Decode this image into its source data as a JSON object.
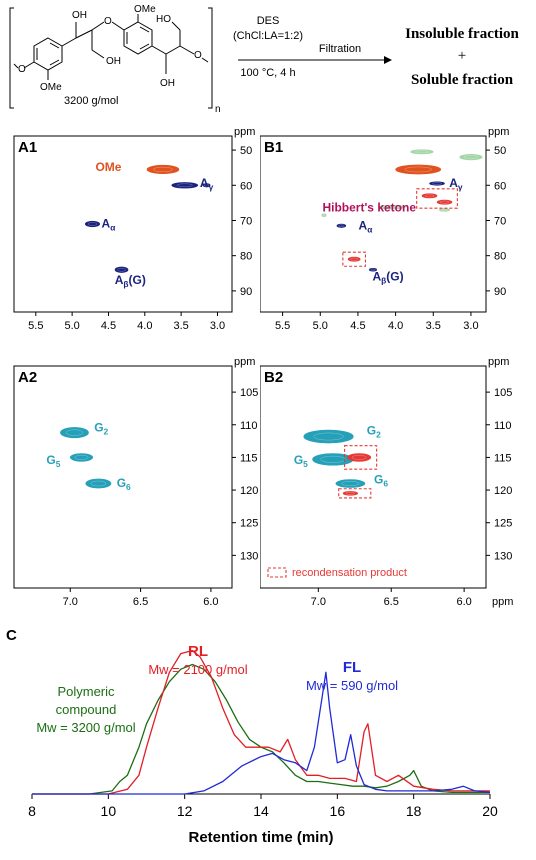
{
  "scheme": {
    "polymer_mw": "3200 g/mol",
    "polymer_n": "n",
    "oh_labels": [
      "OH",
      "OH",
      "HO",
      "OH"
    ],
    "ome_labels": [
      "OMe",
      "OMe"
    ],
    "o_labels": [
      "O",
      "O",
      "O"
    ],
    "arrow_top_lines": [
      "DES",
      "(ChCl:LA=1:2)"
    ],
    "arrow_bottom": "100 °C, 4 h",
    "filtration": "Filtration",
    "insoluble": "Insoluble fraction",
    "plus": "+",
    "soluble": "Soluble fraction"
  },
  "nmr": {
    "ppm_label": "ppm",
    "A1": {
      "title": "A1",
      "x_ticks": [
        "5.5",
        "5.0",
        "4.5",
        "4.0",
        "3.5",
        "3.0"
      ],
      "y_ticks": [
        "50",
        "60",
        "70",
        "80",
        "90"
      ],
      "xlim": [
        5.8,
        2.8
      ],
      "ylim": [
        46,
        96
      ],
      "labels": [
        {
          "text": "OMe",
          "x": 4.5,
          "y": 56.0,
          "color": "#e0531f"
        },
        {
          "text": "Aγ",
          "x": 3.15,
          "y": 60.5,
          "color": "#1a237e"
        },
        {
          "text": "Aα",
          "x": 4.5,
          "y": 72.0,
          "color": "#1a237e"
        },
        {
          "text": "Aβ(G)",
          "x": 4.2,
          "y": 88.0,
          "color": "#1a237e"
        }
      ],
      "peaks": [
        {
          "x": 3.75,
          "y": 55.5,
          "rx": 0.22,
          "ry": 1.2,
          "color": "#e0531f"
        },
        {
          "x": 3.45,
          "y": 60.0,
          "rx": 0.18,
          "ry": 0.8,
          "color": "#1a237e"
        },
        {
          "x": 3.15,
          "y": 60.0,
          "rx": 0.05,
          "ry": 0.5,
          "color": "#1a237e"
        },
        {
          "x": 4.72,
          "y": 71.0,
          "rx": 0.1,
          "ry": 0.8,
          "color": "#1a237e"
        },
        {
          "x": 4.32,
          "y": 84.0,
          "rx": 0.09,
          "ry": 0.8,
          "color": "#1a237e"
        }
      ]
    },
    "B1": {
      "title": "B1",
      "x_ticks": [
        "5.5",
        "5.0",
        "4.5",
        "4.0",
        "3.5",
        "3.0"
      ],
      "y_ticks": [
        "50",
        "60",
        "70",
        "80",
        "90"
      ],
      "xlim": [
        5.8,
        2.8
      ],
      "ylim": [
        46,
        96
      ],
      "labels": [
        {
          "text": "Aγ",
          "x": 3.2,
          "y": 60.5,
          "color": "#1a237e"
        },
        {
          "text": "Hibbert's ketone",
          "x": 4.35,
          "y": 67.5,
          "color": "#b0125a"
        },
        {
          "text": "Aα",
          "x": 4.4,
          "y": 72.5,
          "color": "#1a237e"
        },
        {
          "text": "Aβ(G)",
          "x": 4.1,
          "y": 87.0,
          "color": "#1a237e"
        }
      ],
      "peaks": [
        {
          "x": 3.65,
          "y": 50.5,
          "rx": 0.15,
          "ry": 0.6,
          "color": "#a5d6a7"
        },
        {
          "x": 3.0,
          "y": 52.0,
          "rx": 0.15,
          "ry": 0.8,
          "color": "#a5d6a7"
        },
        {
          "x": 3.7,
          "y": 55.5,
          "rx": 0.3,
          "ry": 1.3,
          "color": "#e0531f"
        },
        {
          "x": 3.45,
          "y": 59.5,
          "rx": 0.1,
          "ry": 0.5,
          "color": "#1a237e"
        },
        {
          "x": 3.55,
          "y": 63.0,
          "rx": 0.1,
          "ry": 0.6,
          "color": "#e53935"
        },
        {
          "x": 3.35,
          "y": 64.8,
          "rx": 0.1,
          "ry": 0.6,
          "color": "#e53935"
        },
        {
          "x": 4.05,
          "y": 66.2,
          "rx": 0.18,
          "ry": 0.5,
          "color": "#a5d6a7"
        },
        {
          "x": 3.35,
          "y": 67.0,
          "rx": 0.07,
          "ry": 0.4,
          "color": "#a5d6a7"
        },
        {
          "x": 4.95,
          "y": 68.5,
          "rx": 0.03,
          "ry": 0.4,
          "color": "#a5d6a7"
        },
        {
          "x": 4.72,
          "y": 71.5,
          "rx": 0.06,
          "ry": 0.5,
          "color": "#1a237e"
        },
        {
          "x": 4.55,
          "y": 81.0,
          "rx": 0.08,
          "ry": 0.6,
          "color": "#e53935"
        },
        {
          "x": 4.3,
          "y": 84.0,
          "rx": 0.05,
          "ry": 0.4,
          "color": "#1a237e"
        }
      ],
      "boxes": [
        {
          "x1": 3.72,
          "x2": 3.18,
          "y1": 61.0,
          "y2": 66.5
        },
        {
          "x1": 4.7,
          "x2": 4.4,
          "y1": 79.0,
          "y2": 83.0
        }
      ]
    },
    "A2": {
      "title": "A2",
      "x_ticks": [
        "7.0",
        "6.5",
        "6.0"
      ],
      "y_ticks": [
        "105",
        "110",
        "115",
        "120",
        "125",
        "130"
      ],
      "xlim": [
        7.4,
        5.85
      ],
      "ylim": [
        101,
        135
      ],
      "labels": [
        {
          "text": "G2",
          "x": 6.78,
          "y": 111.0,
          "color": "#26a0b8"
        },
        {
          "text": "G5",
          "x": 7.12,
          "y": 116.0,
          "color": "#26a0b8"
        },
        {
          "text": "G6",
          "x": 6.62,
          "y": 119.5,
          "color": "#26a0b8"
        }
      ],
      "peaks": [
        {
          "x": 6.97,
          "y": 111.2,
          "rx": 0.1,
          "ry": 0.8,
          "color": "#26a0b8"
        },
        {
          "x": 6.92,
          "y": 115.0,
          "rx": 0.08,
          "ry": 0.6,
          "color": "#26a0b8"
        },
        {
          "x": 6.8,
          "y": 119.0,
          "rx": 0.09,
          "ry": 0.7,
          "color": "#26a0b8"
        }
      ]
    },
    "B2": {
      "title": "B2",
      "x_ticks": [
        "7.0",
        "6.5",
        "6.0"
      ],
      "y_ticks": [
        "105",
        "110",
        "115",
        "120",
        "125",
        "130"
      ],
      "xlim": [
        7.4,
        5.85
      ],
      "ylim": [
        101,
        135
      ],
      "labels": [
        {
          "text": "G2",
          "x": 6.62,
          "y": 111.5,
          "color": "#26a0b8"
        },
        {
          "text": "G5",
          "x": 7.12,
          "y": 116.0,
          "color": "#26a0b8"
        },
        {
          "text": "G6",
          "x": 6.57,
          "y": 119.0,
          "color": "#26a0b8"
        }
      ],
      "peaks": [
        {
          "x": 6.93,
          "y": 111.8,
          "rx": 0.17,
          "ry": 1.0,
          "color": "#26a0b8"
        },
        {
          "x": 6.9,
          "y": 115.3,
          "rx": 0.14,
          "ry": 0.9,
          "color": "#26a0b8"
        },
        {
          "x": 6.72,
          "y": 115.0,
          "rx": 0.08,
          "ry": 0.6,
          "color": "#e53935"
        },
        {
          "x": 6.78,
          "y": 119.0,
          "rx": 0.1,
          "ry": 0.6,
          "color": "#26a0b8"
        },
        {
          "x": 6.78,
          "y": 120.5,
          "rx": 0.05,
          "ry": 0.3,
          "color": "#e53935"
        }
      ],
      "boxes": [
        {
          "x1": 6.82,
          "x2": 6.6,
          "y1": 113.2,
          "y2": 116.8
        },
        {
          "x1": 6.86,
          "x2": 6.64,
          "y1": 119.8,
          "y2": 121.2
        }
      ],
      "legend_text": "recondensation product"
    }
  },
  "chart_data": {
    "type": "line",
    "panel": "C",
    "xlabel": "Retention time (min)",
    "xlim": [
      8,
      20
    ],
    "x_ticks": [
      "8",
      "10",
      "12",
      "14",
      "16",
      "18",
      "20"
    ],
    "annotations": {
      "rl_name": "RL",
      "rl_mw": "Mw = 2100 g/mol",
      "fl_name": "FL",
      "fl_mw": "Mw = 590 g/mol",
      "pc_line1": "Polymeric",
      "pc_line2": "compound",
      "pc_mw": "Mw = 3200 g/mol"
    },
    "series": [
      {
        "name": "Polymeric compound",
        "color": "#1b6f12",
        "x": [
          8,
          9.5,
          10.1,
          10.3,
          10.5,
          10.8,
          11.0,
          11.3,
          11.6,
          11.9,
          12.2,
          12.5,
          12.8,
          13.1,
          13.4,
          13.7,
          14.0,
          14.3,
          14.6,
          14.9,
          15.2,
          15.5,
          15.8,
          16.1,
          16.4,
          16.7,
          17.0,
          17.3,
          17.6,
          17.9,
          18.0,
          18.2,
          18.5,
          19,
          20
        ],
        "y": [
          0,
          0,
          0.02,
          0.08,
          0.12,
          0.3,
          0.45,
          0.6,
          0.72,
          0.8,
          0.83,
          0.8,
          0.72,
          0.6,
          0.46,
          0.35,
          0.3,
          0.27,
          0.2,
          0.12,
          0.08,
          0.08,
          0.07,
          0.06,
          0.05,
          0.05,
          0.04,
          0.05,
          0.08,
          0.12,
          0.15,
          0.05,
          0.02,
          0.01,
          0.01
        ]
      },
      {
        "name": "RL",
        "color": "#e31e24",
        "x": [
          8,
          10.0,
          10.5,
          10.8,
          11.0,
          11.3,
          11.6,
          11.9,
          12.2,
          12.4,
          12.7,
          13.0,
          13.3,
          13.6,
          13.9,
          14.2,
          14.5,
          14.7,
          14.9,
          15.2,
          15.5,
          15.8,
          16.0,
          16.2,
          16.5,
          16.7,
          16.8,
          17.0,
          17.3,
          17.6,
          18.0,
          18.5,
          19,
          20
        ],
        "y": [
          0,
          0.0,
          0.03,
          0.12,
          0.3,
          0.55,
          0.78,
          0.9,
          0.92,
          0.88,
          0.75,
          0.55,
          0.38,
          0.3,
          0.3,
          0.3,
          0.27,
          0.35,
          0.22,
          0.12,
          0.12,
          0.1,
          0.1,
          0.1,
          0.08,
          0.4,
          0.45,
          0.12,
          0.08,
          0.12,
          0.05,
          0.03,
          0.02,
          0.02
        ]
      },
      {
        "name": "FL",
        "color": "#1f2bd6",
        "x": [
          8,
          12.0,
          12.5,
          13.0,
          13.5,
          14.0,
          14.3,
          14.6,
          14.9,
          15.2,
          15.4,
          15.6,
          15.7,
          15.8,
          16.0,
          16.2,
          16.35,
          16.5,
          16.7,
          17.0,
          17.3,
          17.6,
          18.0,
          18.5,
          19.0,
          19.3,
          19.6,
          20
        ],
        "y": [
          0,
          0.0,
          0.02,
          0.08,
          0.18,
          0.24,
          0.26,
          0.22,
          0.2,
          0.15,
          0.3,
          0.62,
          0.78,
          0.55,
          0.2,
          0.22,
          0.38,
          0.18,
          0.06,
          0.03,
          0.02,
          0.02,
          0.02,
          0.02,
          0.03,
          0.05,
          0.02,
          0.01
        ]
      }
    ]
  }
}
